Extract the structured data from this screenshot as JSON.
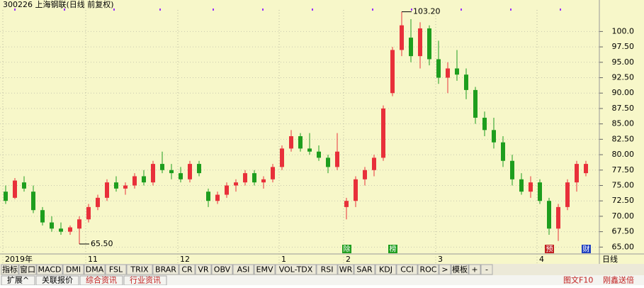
{
  "chart_data": {
    "type": "candlestick",
    "title": "300226 上海钢联(日线 前复权)",
    "categories": [
      "2019年",
      null,
      null,
      null,
      null,
      null,
      null,
      null,
      null,
      "11",
      null,
      null,
      null,
      null,
      null,
      null,
      null,
      null,
      null,
      "12",
      null,
      null,
      null,
      null,
      null,
      null,
      null,
      null,
      null,
      null,
      "1",
      null,
      null,
      null,
      null,
      null,
      null,
      "2",
      null,
      null,
      null,
      null,
      null,
      null,
      null,
      null,
      null,
      "3",
      null,
      null,
      null,
      null,
      null,
      null,
      null,
      null,
      null,
      null,
      "4",
      null,
      null,
      null,
      null,
      null
    ],
    "open": [
      74,
      73,
      75.5,
      74,
      71,
      69,
      68,
      67.5,
      68,
      69.5,
      71.5,
      73,
      75.5,
      74.5,
      75,
      76.5,
      75.5,
      78.5,
      77.5,
      77,
      76,
      78.5,
      74,
      72.5,
      73.5,
      75,
      75.5,
      77,
      75.5,
      76,
      78,
      81,
      83,
      81,
      80.5,
      79.5,
      78,
      71.5,
      72.5,
      76,
      77.5,
      79.5,
      90,
      97,
      99,
      96,
      100.5,
      95.5,
      92.5,
      94,
      93,
      90.5,
      86,
      84,
      82,
      79,
      76,
      74,
      75.5,
      72.5,
      68,
      71.5,
      75.5,
      77
    ],
    "high": [
      75,
      76.2,
      76.5,
      75,
      71.5,
      70,
      69,
      68.5,
      70,
      72,
      73.5,
      76,
      76.5,
      75.5,
      77,
      77.5,
      79,
      80.5,
      78.5,
      78,
      79,
      79,
      74.5,
      74,
      75.5,
      76,
      77.5,
      77.5,
      76.5,
      78.5,
      81.5,
      84,
      83.5,
      83.5,
      81.5,
      80,
      83.5,
      73,
      76.5,
      78,
      80,
      88,
      97.5,
      103.2,
      102,
      101.5,
      101,
      98.5,
      95,
      97,
      94,
      91,
      87,
      86,
      83,
      80,
      77,
      76.5,
      76,
      73,
      72,
      76,
      79,
      79
    ],
    "low": [
      72,
      72.8,
      74,
      70.5,
      68.5,
      67.5,
      67,
      67,
      65.5,
      69,
      71,
      72.5,
      74,
      73.5,
      74.5,
      75,
      75,
      77,
      76,
      75.5,
      75.5,
      76.5,
      71.5,
      72,
      73,
      74,
      75,
      75,
      74.5,
      75.5,
      77.5,
      80.5,
      80.5,
      80,
      79,
      77,
      77.5,
      69.5,
      71.5,
      75,
      76.5,
      79,
      89.5,
      96,
      95,
      94,
      94.5,
      91.5,
      90,
      92,
      89,
      85,
      83,
      81,
      78,
      75,
      73.5,
      73,
      72,
      67,
      66,
      71,
      74,
      76.5
    ],
    "close": [
      72.5,
      75.8,
      74.5,
      71,
      69,
      68,
      67.5,
      68.2,
      69.5,
      71.5,
      73,
      75.5,
      74.5,
      75,
      76.5,
      75.5,
      78.5,
      77.5,
      77,
      76,
      78.5,
      77,
      72.5,
      73.5,
      75,
      75.5,
      77,
      75.5,
      76,
      78,
      81,
      83,
      81,
      80.5,
      79.5,
      78,
      80.5,
      72.5,
      76,
      77.5,
      79.5,
      87.5,
      97,
      101,
      96,
      100.5,
      95.5,
      92.5,
      94,
      93,
      90.5,
      86,
      84,
      82,
      79,
      76,
      74,
      75.5,
      72.5,
      68,
      71.5,
      75.5,
      78.5,
      78.5
    ],
    "up_color": "#e8303a",
    "down_color": "#1e9e1e",
    "ylim": [
      64,
      103.5
    ],
    "yticks": [
      {
        "value": 65,
        "label": "65.00"
      },
      {
        "value": 67.5,
        "label": "67.50"
      },
      {
        "value": 70,
        "label": "70.00"
      },
      {
        "value": 72.5,
        "label": "72.50"
      },
      {
        "value": 75,
        "label": "75.00"
      },
      {
        "value": 77.5,
        "label": "77.50"
      },
      {
        "value": 80,
        "label": "80.00"
      },
      {
        "value": 82.5,
        "label": "82.50"
      },
      {
        "value": 85,
        "label": "85.00"
      },
      {
        "value": 87.5,
        "label": "87.50"
      },
      {
        "value": 90,
        "label": "90.00"
      },
      {
        "value": 92.5,
        "label": "92.50"
      },
      {
        "value": 95,
        "label": "95.00"
      },
      {
        "value": 97.5,
        "label": "97.50"
      },
      {
        "value": 100,
        "label": "100.0"
      }
    ],
    "grid": true,
    "annotations": [
      {
        "index": 43,
        "value": 103.2,
        "label": "103.20"
      },
      {
        "index": 8,
        "value": 65.5,
        "label": "65.50"
      }
    ],
    "events": [
      {
        "index": 37,
        "label": "除",
        "color": "#1e9e1e"
      },
      {
        "index": 42,
        "label": "榜",
        "color": "#1e9e1e"
      },
      {
        "index": 59,
        "label": "预",
        "color": "#c02020"
      },
      {
        "index": 63,
        "label": "财",
        "color": "#2040c0"
      }
    ],
    "period_label": "日线"
  },
  "toolbar": [
    "指标",
    "窗口",
    "MACD",
    "DMI",
    "DMA",
    "FSL",
    "TRIX",
    "BRAR",
    "CR",
    "VR",
    "OBV",
    "ASI",
    "EMV",
    "VOL-TDX",
    "RSI",
    "WR",
    "SAR",
    "KDJ",
    "CCI",
    "ROC",
    ">",
    "模板",
    "+",
    "-"
  ],
  "tabs": [
    "扩展^",
    "关联报价",
    "综合资讯",
    "行业资讯"
  ],
  "right_links": [
    "图文F10",
    "刚鑫送倍"
  ]
}
